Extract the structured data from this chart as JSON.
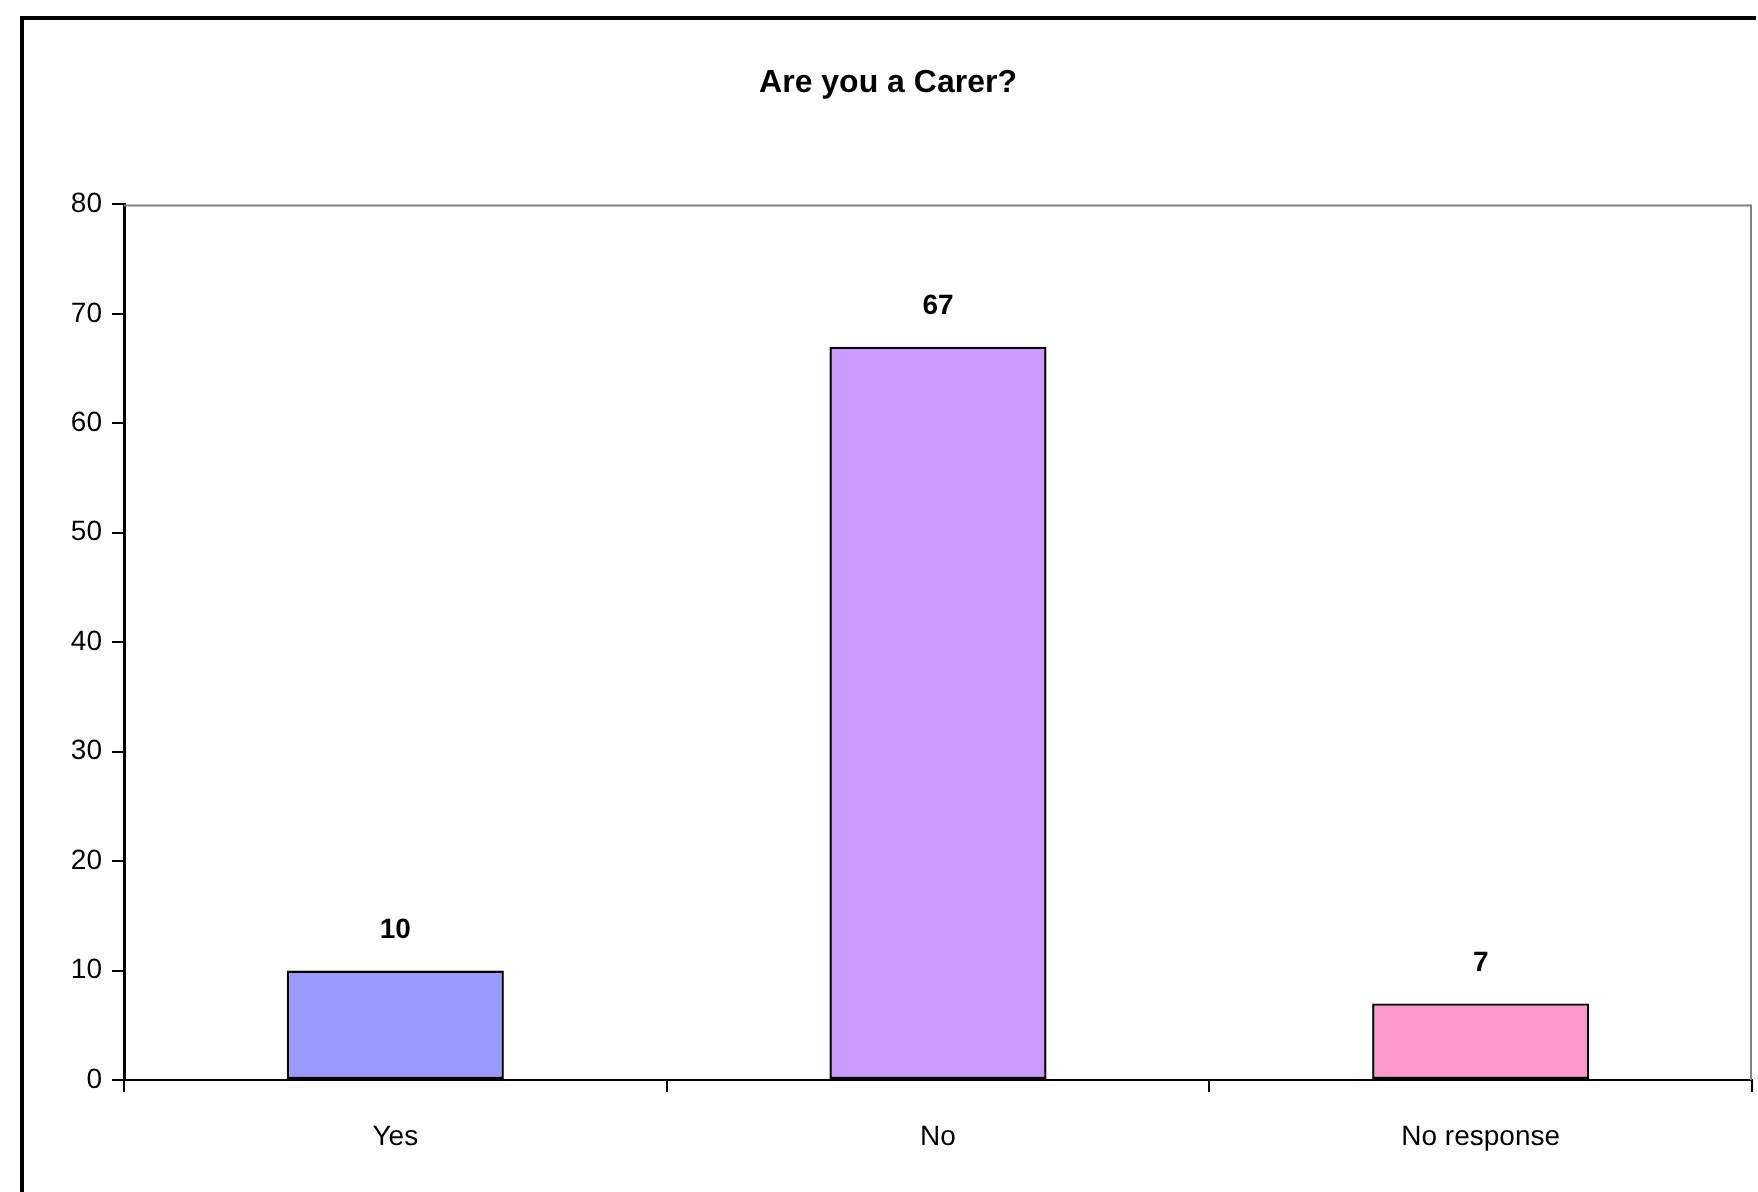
{
  "chart_data": {
    "type": "bar",
    "title": "Are you a Carer?",
    "categories": [
      "Yes",
      "No",
      "No response"
    ],
    "values": [
      10,
      67,
      7
    ],
    "colors": [
      "#9999ff",
      "#cc99ff",
      "#ff99cc"
    ],
    "ylim": [
      0,
      80
    ],
    "yticks": [
      0,
      10,
      20,
      30,
      40,
      50,
      60,
      70,
      80
    ],
    "grid": false,
    "legend": false,
    "data_labels": true
  }
}
